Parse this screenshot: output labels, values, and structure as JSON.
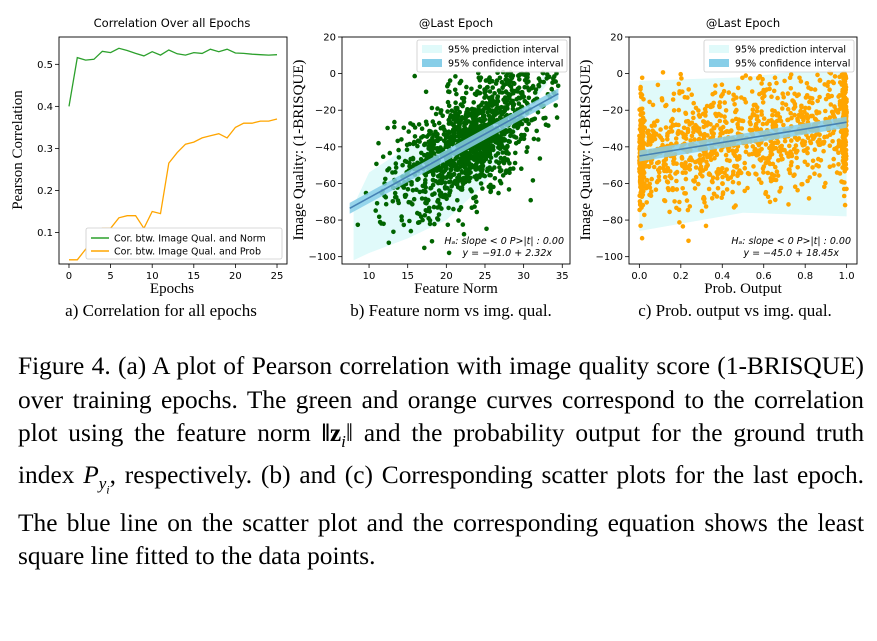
{
  "chart_data": [
    {
      "type": "line",
      "title": "Correlation Over all Epochs",
      "xlabel": "Epochs",
      "ylabel": "Pearson Correlation",
      "subfigure_label": "a) Correlation for all epochs",
      "xlim": [
        -1.2,
        26.2
      ],
      "ylim": [
        0.025,
        0.565
      ],
      "xticks": [
        0,
        5,
        10,
        15,
        20,
        25
      ],
      "yticks": [
        0.1,
        0.2,
        0.3,
        0.4,
        0.5
      ],
      "ytick_labels": [
        "0.1",
        "0.2",
        "0.3",
        "0.4",
        "0.5"
      ],
      "legend_position": "lower-right",
      "series": [
        {
          "name": "Cor. btw. Image Qual. and Norm",
          "color": "#2ca02c",
          "x": [
            0,
            1,
            2,
            3,
            4,
            5,
            6,
            7,
            8,
            9,
            10,
            11,
            12,
            13,
            14,
            15,
            16,
            17,
            18,
            19,
            20,
            21,
            22,
            23,
            24,
            25
          ],
          "values": [
            0.4,
            0.516,
            0.51,
            0.512,
            0.531,
            0.528,
            0.538,
            0.533,
            0.526,
            0.52,
            0.53,
            0.522,
            0.534,
            0.525,
            0.522,
            0.528,
            0.526,
            0.536,
            0.53,
            0.536,
            0.527,
            0.526,
            0.524,
            0.523,
            0.522,
            0.523
          ]
        },
        {
          "name": "Cor. btw. Image Qual. and Prob",
          "color": "#ffa500",
          "x": [
            0,
            1,
            2,
            3,
            4,
            5,
            6,
            7,
            8,
            9,
            10,
            11,
            12,
            13,
            14,
            15,
            16,
            17,
            18,
            19,
            20,
            21,
            22,
            23,
            24,
            25
          ],
          "values": [
            0.035,
            0.035,
            0.06,
            0.09,
            0.11,
            0.11,
            0.135,
            0.14,
            0.14,
            0.11,
            0.15,
            0.145,
            0.265,
            0.29,
            0.31,
            0.315,
            0.325,
            0.33,
            0.335,
            0.325,
            0.35,
            0.36,
            0.36,
            0.365,
            0.365,
            0.37
          ]
        }
      ]
    },
    {
      "type": "scatter",
      "title": "@Last Epoch",
      "xlabel": "Feature Norm",
      "ylabel": "Image Quality: (1-BRISQUE)",
      "subfigure_label": "b) Feature norm vs img. qual.",
      "xlim": [
        6.5,
        36
      ],
      "ylim": [
        -104,
        20
      ],
      "xticks": [
        10,
        15,
        20,
        25,
        30,
        35
      ],
      "yticks": [
        -100,
        -80,
        -60,
        -40,
        -20,
        0,
        20
      ],
      "ytick_labels": [
        "−100",
        "−80",
        "−60",
        "−40",
        "−20",
        "0",
        "20"
      ],
      "point_color": "#006400",
      "fit": {
        "intercept": -91.0,
        "slope": 2.32
      },
      "confidence_halfwidth": 3,
      "prediction_interval": {
        "points": [
          [
            8,
            -72
          ],
          [
            10,
            -54
          ],
          [
            15,
            -40
          ],
          [
            20,
            -35
          ],
          [
            25,
            -30
          ],
          [
            30,
            -22
          ],
          [
            33,
            -6
          ],
          [
            34,
            14
          ],
          [
            34,
            14
          ],
          [
            30,
            -26
          ],
          [
            25,
            -60
          ],
          [
            20,
            -80
          ],
          [
            15,
            -90
          ],
          [
            10,
            -98
          ],
          [
            8,
            -102
          ]
        ]
      },
      "scatter_sample_n": 1300,
      "scatter_x_range": [
        7.5,
        34.5
      ],
      "scatter_mean_x": 23,
      "scatter_std_x": 4.6,
      "scatter_noise": 15,
      "legend": [
        "95% prediction interval",
        "95% confidence interval"
      ],
      "legend_position": "top-right",
      "annotation": [
        "Hₐ: slope < 0   P>|t| : 0.00",
        "y = −91.0 + 2.32x"
      ]
    },
    {
      "type": "scatter",
      "title": "@Last Epoch",
      "xlabel": "Prob. Output",
      "ylabel": "Image Quality: (1-BRISQUE)",
      "subfigure_label": "c) Prob. output vs img. qual.",
      "xlim": [
        -0.05,
        1.05
      ],
      "ylim": [
        -104,
        20
      ],
      "xticks": [
        0.0,
        0.2,
        0.4,
        0.6,
        0.8,
        1.0
      ],
      "xtick_labels": [
        "0.0",
        "0.2",
        "0.4",
        "0.6",
        "0.8",
        "1.0"
      ],
      "yticks": [
        -100,
        -80,
        -60,
        -40,
        -20,
        0,
        20
      ],
      "ytick_labels": [
        "−100",
        "−80",
        "−60",
        "−40",
        "−20",
        "0",
        "20"
      ],
      "point_color": "#ffa500",
      "fit": {
        "intercept": -45.0,
        "slope": 18.45
      },
      "confidence_halfwidth": 3,
      "prediction_interval": {
        "points": [
          [
            0,
            -4
          ],
          [
            0.5,
            -2
          ],
          [
            1,
            4
          ],
          [
            1,
            -78
          ],
          [
            0.5,
            -76
          ],
          [
            0,
            -86
          ]
        ]
      },
      "scatter_sample_n": 1300,
      "scatter_x_range": [
        0,
        1
      ],
      "scatter_noise": 15,
      "legend": [
        "95% prediction interval",
        "95% confidence interval"
      ],
      "legend_position": "top-right",
      "annotation": [
        "Hₐ: slope < 0   P>|t| : 0.00",
        "y = −45.0 + 18.45x"
      ]
    }
  ],
  "legend_colors": {
    "prediction": "#e0fafa",
    "confidence": "#87cee8",
    "fit_line": "#4682b4"
  },
  "caption": {
    "part1": "Figure 4.  (a) A plot of Pearson correlation with image quality score (1-BRISQUE) over training epochs.  The green and orange curves correspond to the correlation plot using the feature norm ",
    "norm_symbol": "‖z",
    "norm_sub": "i",
    "norm_close": "‖",
    "part2": " and the probability output for the ground truth index ",
    "p_symbol": "P",
    "p_sub": "y",
    "p_subsub": "i",
    "part3": ", respectively.  (b) and (c) Corresponding scatter plots for the last epoch.  The blue line on the scatter plot and the corresponding equation shows the least square line fitted to the data points."
  }
}
